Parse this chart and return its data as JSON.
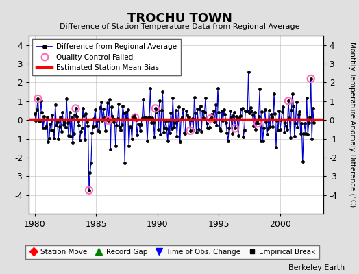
{
  "title": "TROCHU TOWN",
  "subtitle": "Difference of Station Temperature Data from Regional Average",
  "ylabel": "Monthly Temperature Anomaly Difference (°C)",
  "xlabel_ticks": [
    1980,
    1985,
    1990,
    1995,
    2000
  ],
  "xlim": [
    1979.5,
    2003.5
  ],
  "ylim": [
    -5,
    4.5
  ],
  "yticks": [
    -4,
    -3,
    -2,
    -1,
    0,
    1,
    2,
    3,
    4
  ],
  "bias_value": 0.05,
  "background_color": "#e0e0e0",
  "plot_bg_color": "#ffffff",
  "line_color": "#0000cc",
  "bias_color": "#ff0000",
  "marker_color": "#000000",
  "qc_color": "#ff69b4",
  "berkeley_earth_text": "Berkeley Earth",
  "seed": 42
}
